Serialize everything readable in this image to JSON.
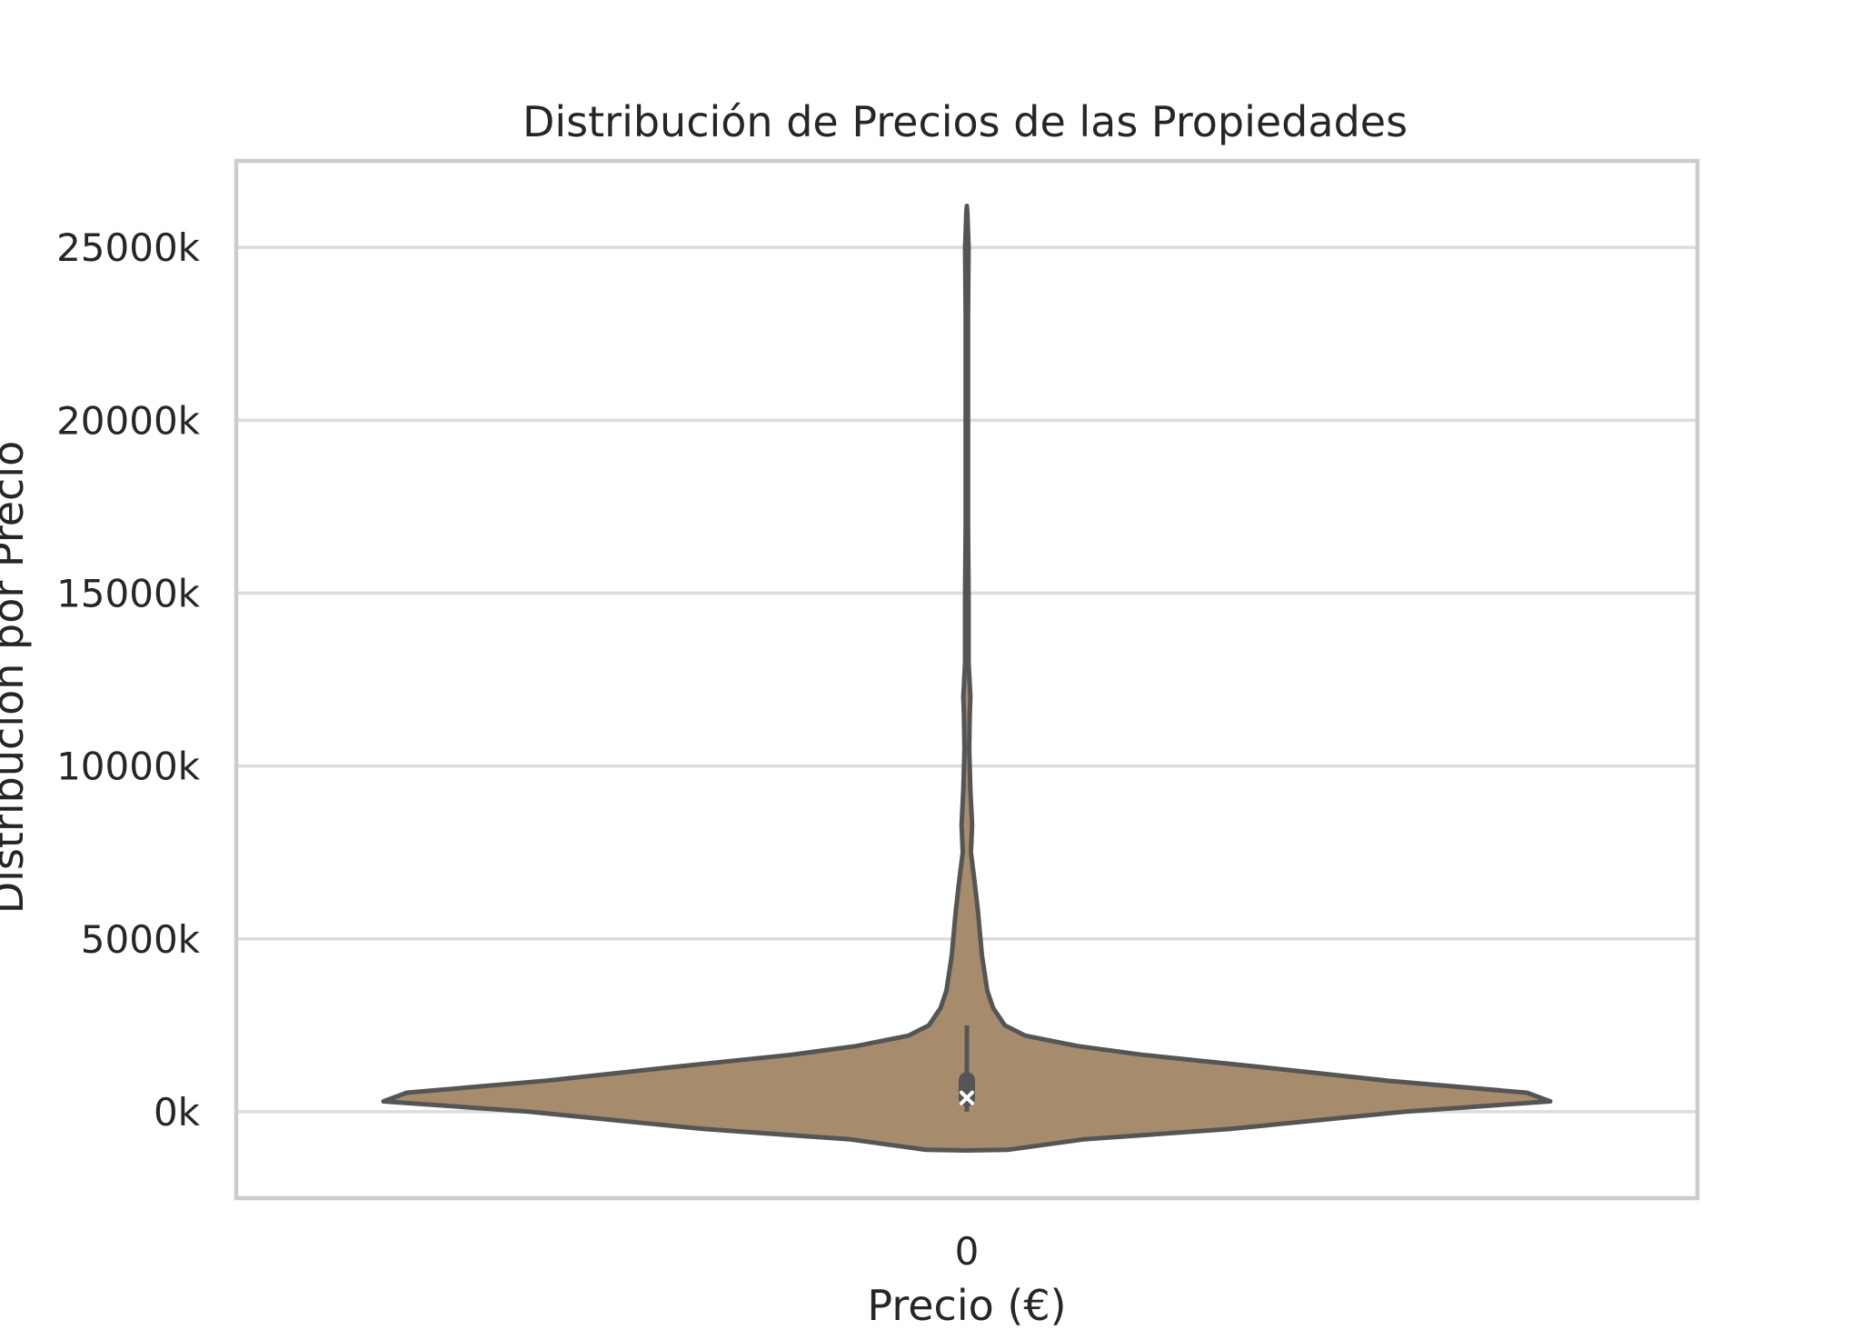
{
  "chart_data": {
    "type": "violin",
    "title": "Distribución de Precios de las Propiedades",
    "xlabel": "Precio (€)",
    "ylabel": "Distribución por Precio",
    "categories": [
      "0"
    ],
    "ylim": [
      -2500,
      27500
    ],
    "y_ticks": [
      0,
      5000,
      10000,
      15000,
      20000,
      25000
    ],
    "y_tick_labels": [
      "0k",
      "5000k",
      "10000k",
      "15000k",
      "20000k",
      "25000k"
    ],
    "grid": "horizontal",
    "fill_color": "#a68c6d",
    "outline_color": "#555555",
    "violin_profile": [
      {
        "y": -1100,
        "w": 0.07
      },
      {
        "y": -800,
        "w": 0.2
      },
      {
        "y": -500,
        "w": 0.45
      },
      {
        "y": 0,
        "w": 0.75
      },
      {
        "y": 300,
        "w": 1.0
      },
      {
        "y": 550,
        "w": 0.96
      },
      {
        "y": 900,
        "w": 0.72
      },
      {
        "y": 1300,
        "w": 0.5
      },
      {
        "y": 1650,
        "w": 0.3
      },
      {
        "y": 1900,
        "w": 0.19
      },
      {
        "y": 2200,
        "w": 0.1
      },
      {
        "y": 2500,
        "w": 0.065
      },
      {
        "y": 3000,
        "w": 0.045
      },
      {
        "y": 3500,
        "w": 0.035
      },
      {
        "y": 4500,
        "w": 0.026
      },
      {
        "y": 5800,
        "w": 0.019
      },
      {
        "y": 6700,
        "w": 0.013
      },
      {
        "y": 7500,
        "w": 0.007
      },
      {
        "y": 8300,
        "w": 0.009
      },
      {
        "y": 9300,
        "w": 0.006
      },
      {
        "y": 10500,
        "w": 0.004
      },
      {
        "y": 11500,
        "w": 0.005
      },
      {
        "y": 12000,
        "w": 0.006
      },
      {
        "y": 13000,
        "w": 0.003
      },
      {
        "y": 15000,
        "w": 0.003
      },
      {
        "y": 17000,
        "w": 0.002
      },
      {
        "y": 20000,
        "w": 0.002
      },
      {
        "y": 23000,
        "w": 0.002
      },
      {
        "y": 25000,
        "w": 0.003
      },
      {
        "y": 26000,
        "w": 0.001
      }
    ],
    "box": {
      "q1": 150,
      "median": 400,
      "q3": 1150,
      "whisker_low": 0,
      "whisker_high": 2500
    }
  }
}
